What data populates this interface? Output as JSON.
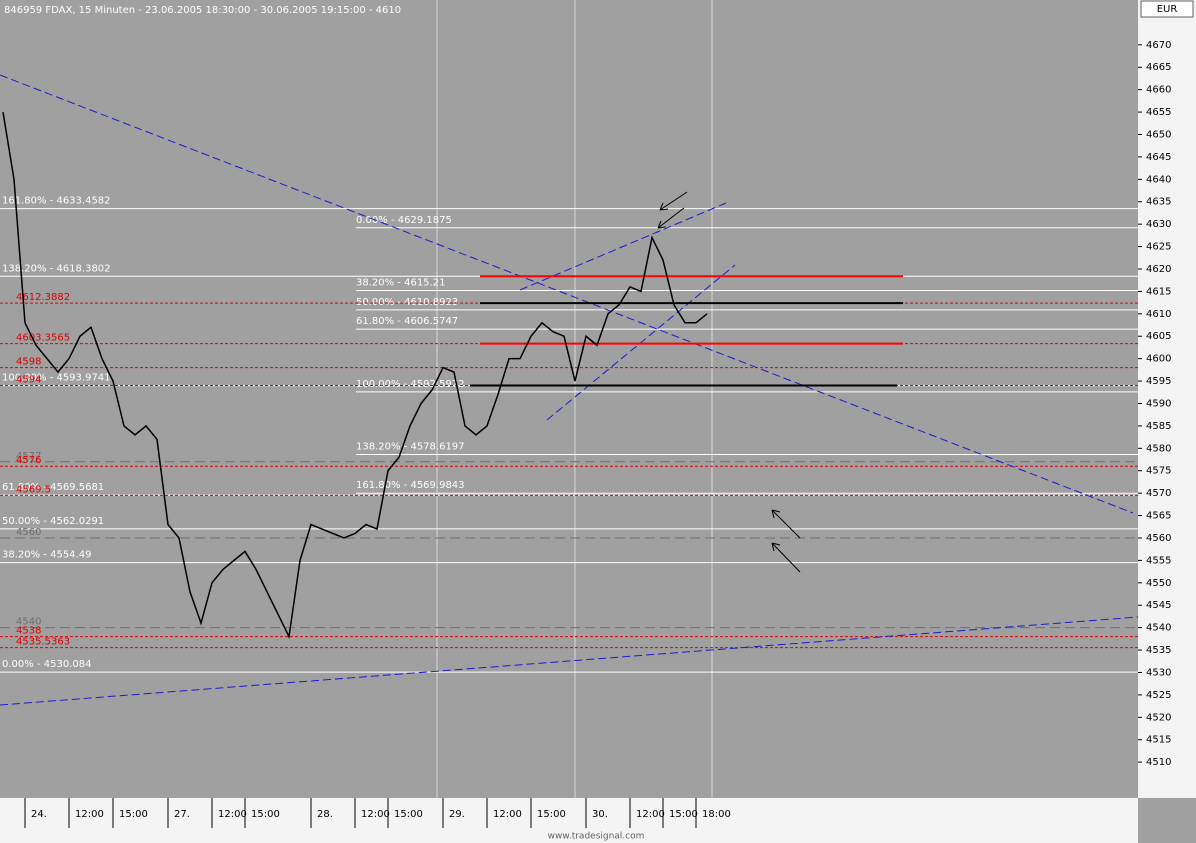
{
  "chart_data": {
    "type": "line",
    "title": "846959  FDAX, 15 Minuten - 23.06.2005 18:30:00 - 30.06.2005 19:15:00 - 4610",
    "currency": "EUR",
    "footer": "www.tradesignal.com",
    "color": "#000000",
    "categories": [
      null,
      null,
      "24.",
      null,
      null,
      null,
      "12:00",
      null,
      null,
      null,
      "15:00",
      null,
      null,
      null,
      null,
      "27.",
      null,
      null,
      null,
      "12:00",
      null,
      null,
      "15:00",
      null,
      null,
      null,
      null,
      null,
      "28.",
      null,
      null,
      null,
      "12:00",
      null,
      null,
      "15:00",
      null,
      null,
      null,
      null,
      "29.",
      null,
      null,
      null,
      "12:00",
      null,
      null,
      null,
      "15:00",
      null,
      null,
      null,
      null,
      "30.",
      null,
      null,
      null,
      "12:00",
      null,
      null,
      "15:00",
      null,
      null,
      "18:00",
      null
    ],
    "values": [
      4655,
      4640,
      4608,
      4603,
      4600,
      4597,
      4600,
      4605,
      4607,
      4600,
      4595,
      4585,
      4583,
      4585,
      4582,
      4563,
      4560,
      4548,
      4541,
      4550,
      4553,
      4555,
      4557,
      4553,
      4548,
      4543,
      4538,
      4555,
      4563,
      4562,
      4561,
      4560,
      4561,
      4563,
      4562,
      4575,
      4578,
      4585,
      4590,
      4593,
      4598,
      4597,
      4585,
      4583,
      4585,
      4592,
      4600,
      4600,
      4605,
      4608,
      4606,
      4605,
      4595,
      4605,
      4603,
      4610,
      4612,
      4616,
      4615,
      4627,
      4622,
      4612,
      4608,
      4608,
      4610
    ],
    "ylim": [
      4502,
      4680
    ],
    "yticks": [
      4510,
      4515,
      4520,
      4525,
      4530,
      4535,
      4540,
      4545,
      4550,
      4555,
      4560,
      4565,
      4570,
      4575,
      4580,
      4585,
      4590,
      4595,
      4600,
      4605,
      4610,
      4615,
      4620,
      4625,
      4630,
      4635,
      4640,
      4645,
      4650,
      4655,
      4660,
      4665,
      4670
    ],
    "fib_levels_left": [
      {
        "label": "161.80% - 4633.4582",
        "value": 4633.4582
      },
      {
        "label": "138.20% - 4618.3802",
        "value": 4618.3802
      },
      {
        "label": "100.00% - 4593.9741",
        "value": 4593.9741
      },
      {
        "label": "61.80% - 4569.5681",
        "value": 4569.5681
      },
      {
        "label": "50.00% - 4562.0291",
        "value": 4562.0291
      },
      {
        "label": "38.20% - 4554.49",
        "value": 4554.49
      },
      {
        "label": "0.00% - 4530.084",
        "value": 4530.084
      }
    ],
    "fib_levels_mid": [
      {
        "label": "0.00% - 4629.1875",
        "value": 4629.1875
      },
      {
        "label": "38.20% - 4615.21",
        "value": 4615.21
      },
      {
        "label": "50.00% - 4610.8923",
        "value": 4610.8923
      },
      {
        "label": "61.80% - 4606.5747",
        "value": 4606.5747
      },
      {
        "label": "100.00% - 4592.5972",
        "value": 4592.5972
      },
      {
        "label": "138.20% - 4578.6197",
        "value": 4578.6197
      },
      {
        "label": "161.80% - 4569.9843",
        "value": 4569.9843
      }
    ],
    "marker_levels": [
      {
        "value": 4612.3882,
        "color": "#e00000"
      },
      {
        "value": 4603.3565,
        "color": "#e00000"
      },
      {
        "value": 4598,
        "color": "#e00000"
      },
      {
        "value": 4594,
        "color": "#e00000"
      },
      {
        "value": 4577,
        "color": "#6e6e6e"
      },
      {
        "value": 4576,
        "color": "#e00000"
      },
      {
        "value": 4569.5,
        "color": "#e00000"
      },
      {
        "value": 4560,
        "color": "#6e6e6e"
      },
      {
        "value": 4540,
        "color": "#6e6e6e"
      },
      {
        "value": 4538,
        "color": "#e00000"
      },
      {
        "value": 4535.5363,
        "color": "#e00000"
      }
    ],
    "zones": [
      {
        "value": 4618.3802,
        "color": "#ff0000"
      },
      {
        "value": 4612.3882,
        "color": "#000000"
      },
      {
        "value": 4603.3565,
        "color": "#ff0000"
      },
      {
        "value": 4594,
        "color": "#000000"
      }
    ]
  }
}
